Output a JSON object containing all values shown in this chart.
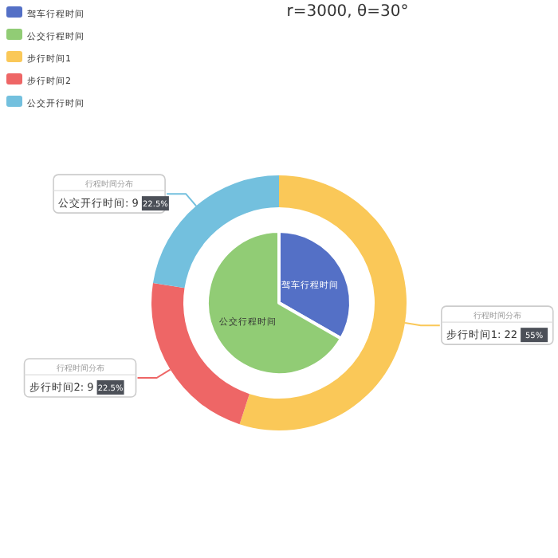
{
  "chart_data": [
    {
      "type": "pie",
      "title": "r=3000, θ=30°",
      "legend": "top left",
      "categories": [
        "驾车行程时间",
        "公交行程时间"
      ],
      "values": [
        33.3,
        66.7
      ],
      "colors": [
        "#5470c6",
        "#91cc75"
      ]
    },
    {
      "type": "donut",
      "legend": "top left",
      "categories": [
        "步行时间1",
        "步行时间2",
        "公交开行时间"
      ],
      "series": [
        {
          "name": "行程时间分布",
          "values": [
            22,
            9,
            9
          ],
          "colors": [
            "#fac858",
            "#ee6666",
            "#73c0de"
          ],
          "value_labels": [
            ": 22 55%",
            ": 9 22.5%",
            ": 9 22.5%"
          ]
        }
      ]
    }
  ]
}
